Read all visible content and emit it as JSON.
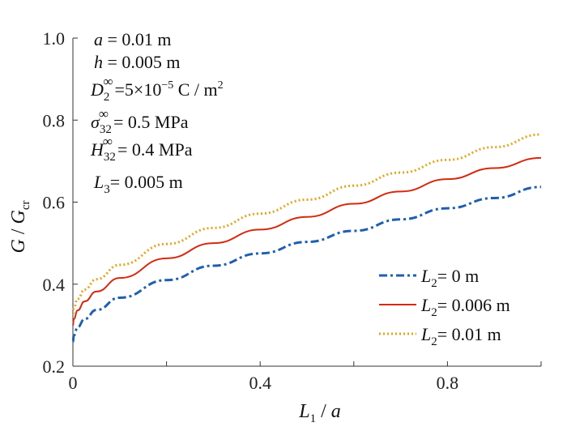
{
  "chart_data": {
    "type": "line",
    "xlabel": "L1 / a",
    "ylabel": "G / Gcr",
    "xlim": [
      0,
      1.0
    ],
    "ylim": [
      0.2,
      1.0
    ],
    "x_ticks": [
      "0",
      "0.4",
      "0.8"
    ],
    "y_ticks": [
      "0.2",
      "0.4",
      "0.6",
      "0.8",
      "1.0"
    ],
    "grid": false,
    "legend_position": "bottom-right",
    "x": [
      0,
      0.002,
      0.01,
      0.025,
      0.05,
      0.1,
      0.2,
      0.3,
      0.4,
      0.5,
      0.6,
      0.7,
      0.8,
      0.9,
      1.0
    ],
    "series": [
      {
        "name": "L2 = 0 m",
        "color": "#1f5fb0",
        "style": "dash-dot",
        "values": [
          0.26,
          0.275,
          0.295,
          0.315,
          0.337,
          0.367,
          0.41,
          0.445,
          0.475,
          0.503,
          0.53,
          0.558,
          0.585,
          0.61,
          0.637
        ]
      },
      {
        "name": "L2 = 0.006 m",
        "color": "#d42a0f",
        "style": "solid",
        "values": [
          0.3,
          0.315,
          0.336,
          0.358,
          0.382,
          0.415,
          0.463,
          0.5,
          0.533,
          0.564,
          0.596,
          0.626,
          0.656,
          0.683,
          0.708
        ]
      },
      {
        "name": "L2 = 0.01 m",
        "color": "#e6a51c",
        "style": "dotted",
        "values": [
          0.328,
          0.343,
          0.364,
          0.387,
          0.412,
          0.447,
          0.498,
          0.537,
          0.572,
          0.606,
          0.64,
          0.672,
          0.703,
          0.734,
          0.765
        ]
      }
    ]
  },
  "params": {
    "a": "= 0.01 m",
    "h": "= 0.005 m",
    "D2_inf": "=5×10",
    "D2_exp": "−5",
    "D2_unit": " C / m",
    "D2_unit_exp": "2",
    "sigma32_inf": "= 0.5 MPa",
    "H32_inf": "= 0.4 MPa",
    "L3": "= 0.005 m"
  },
  "legend": {
    "s0": "= 0 m",
    "s1": "= 0.006 m",
    "s2": "= 0.01 m"
  }
}
